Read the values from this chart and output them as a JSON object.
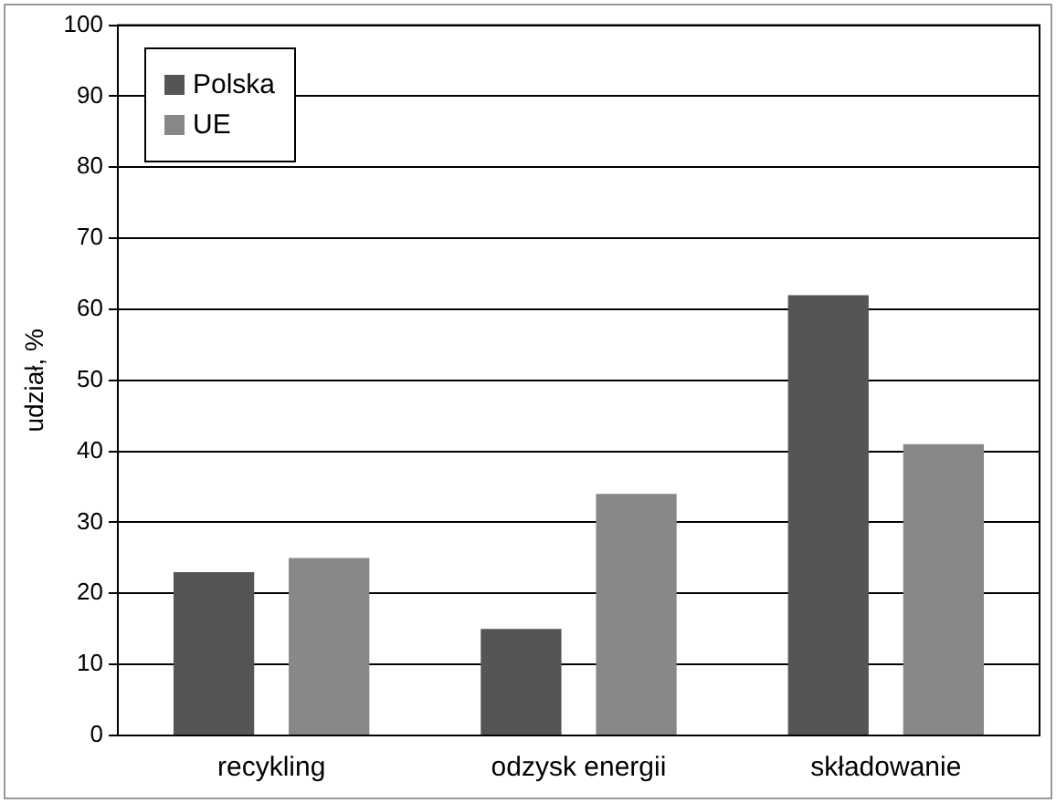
{
  "chart_data": {
    "type": "bar",
    "ylabel": "udział, %",
    "categories": [
      "recykling",
      "odzysk energii",
      "składowanie"
    ],
    "series": [
      {
        "name": "Polska",
        "color": "#555555",
        "values": [
          23,
          15,
          62
        ]
      },
      {
        "name": "UE",
        "color": "#888888",
        "values": [
          25,
          34,
          41
        ]
      }
    ],
    "ylim": [
      0,
      100
    ],
    "yticks": [
      0,
      10,
      20,
      30,
      40,
      50,
      60,
      70,
      80,
      90,
      100
    ],
    "grid": "y",
    "legend": "top left"
  }
}
